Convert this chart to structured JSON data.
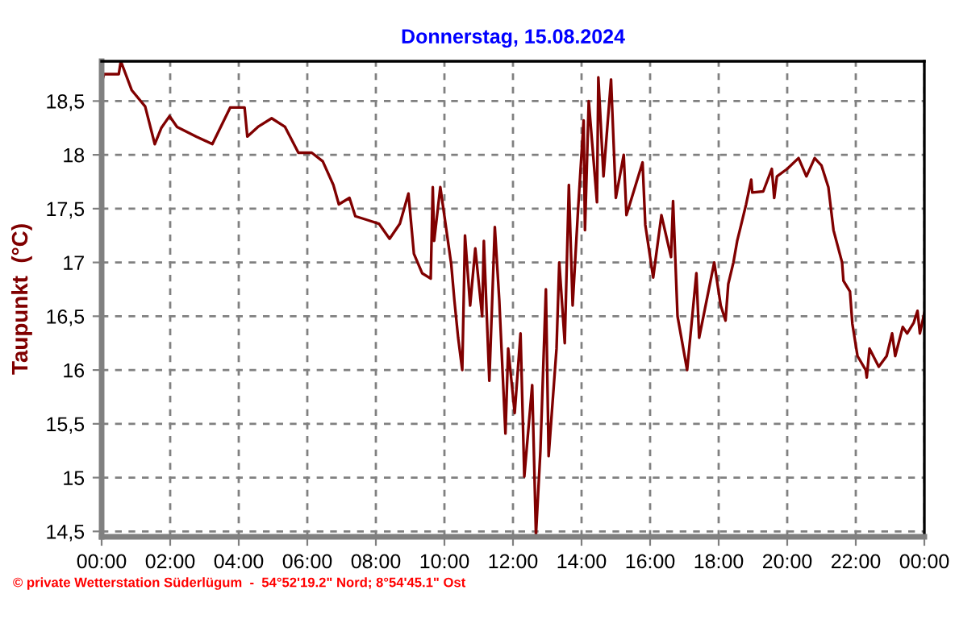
{
  "chart_data": {
    "type": "line",
    "title": "Donnerstag, 15.08.2024",
    "ylabel": "Taupunkt  (°C)",
    "annotations": [
      "© private Wetterstation Süderlügum  -  54°52'19.2\" Nord; 8°54'45.1\" Ost"
    ],
    "xlim": [
      0,
      24
    ],
    "ylim": [
      14.45,
      18.87
    ],
    "xticks": [
      {
        "value": 0,
        "label": "00:00"
      },
      {
        "value": 2,
        "label": "02:00"
      },
      {
        "value": 4,
        "label": "04:00"
      },
      {
        "value": 6,
        "label": "06:00"
      },
      {
        "value": 8,
        "label": "08:00"
      },
      {
        "value": 10,
        "label": "10:00"
      },
      {
        "value": 12,
        "label": "12:00"
      },
      {
        "value": 14,
        "label": "14:00"
      },
      {
        "value": 16,
        "label": "16:00"
      },
      {
        "value": 18,
        "label": "18:00"
      },
      {
        "value": 20,
        "label": "20:00"
      },
      {
        "value": 22,
        "label": "22:00"
      },
      {
        "value": 24,
        "label": "00:00"
      }
    ],
    "yticks": [
      {
        "value": 14.5,
        "label": "14,5"
      },
      {
        "value": 15,
        "label": "15"
      },
      {
        "value": 15.5,
        "label": "15,5"
      },
      {
        "value": 16,
        "label": "16"
      },
      {
        "value": 16.5,
        "label": "16,5"
      },
      {
        "value": 17,
        "label": "17"
      },
      {
        "value": 17.5,
        "label": "17,5"
      },
      {
        "value": 18,
        "label": "18"
      },
      {
        "value": 18.5,
        "label": "18,5"
      }
    ],
    "grid": true,
    "line_style": "solid",
    "series": [
      {
        "color": "#800000",
        "x": [
          0.0,
          0.07,
          0.5,
          0.56,
          0.88,
          1.27,
          1.55,
          1.74,
          1.98,
          2.2,
          2.76,
          3.23,
          3.75,
          4.17,
          4.25,
          4.56,
          4.96,
          5.35,
          5.74,
          6.13,
          6.45,
          6.76,
          6.92,
          7.23,
          7.4,
          7.7,
          8.09,
          8.4,
          8.7,
          8.95,
          9.11,
          9.35,
          9.6,
          9.66,
          9.7,
          9.88,
          10.2,
          10.29,
          10.4,
          10.52,
          10.6,
          10.75,
          10.9,
          11.1,
          11.15,
          11.31,
          11.47,
          11.6,
          11.78,
          11.86,
          12.05,
          12.22,
          12.33,
          12.56,
          12.67,
          12.8,
          12.96,
          13.04,
          13.27,
          13.35,
          13.51,
          13.63,
          13.74,
          13.9,
          14.06,
          14.1,
          14.21,
          14.45,
          14.49,
          14.64,
          14.86,
          15.0,
          15.23,
          15.31,
          15.78,
          15.86,
          16.09,
          16.33,
          16.61,
          16.67,
          16.8,
          17.08,
          17.35,
          17.43,
          17.87,
          18.06,
          18.2,
          18.28,
          18.43,
          18.54,
          18.64,
          18.8,
          18.95,
          18.98,
          19.3,
          19.55,
          19.62,
          19.7,
          20.0,
          20.33,
          20.56,
          20.8,
          21.0,
          21.2,
          21.35,
          21.6,
          21.64,
          21.83,
          21.9,
          22.05,
          22.29,
          22.32,
          22.4,
          22.67,
          22.9,
          23.06,
          23.15,
          23.37,
          23.5,
          23.69,
          23.8,
          23.87,
          24.0
        ],
        "values": [
          18.67,
          18.75,
          18.75,
          18.87,
          18.6,
          18.45,
          18.1,
          18.25,
          18.36,
          18.26,
          18.17,
          18.1,
          18.44,
          18.44,
          18.17,
          18.26,
          18.34,
          18.26,
          18.02,
          18.02,
          17.94,
          17.72,
          17.54,
          17.6,
          17.43,
          17.4,
          17.36,
          17.22,
          17.36,
          17.64,
          17.08,
          16.9,
          16.85,
          17.7,
          17.2,
          17.7,
          16.98,
          16.65,
          16.3,
          16.0,
          17.25,
          16.6,
          17.13,
          16.5,
          17.2,
          15.9,
          17.33,
          16.65,
          15.41,
          16.2,
          15.6,
          16.34,
          15.01,
          15.86,
          14.47,
          15.25,
          16.75,
          15.2,
          16.2,
          17.0,
          16.25,
          17.72,
          16.6,
          17.5,
          18.32,
          17.3,
          18.5,
          17.56,
          18.72,
          17.8,
          18.7,
          17.6,
          18.0,
          17.44,
          17.93,
          17.35,
          16.86,
          17.44,
          17.05,
          17.57,
          16.5,
          16.0,
          16.9,
          16.3,
          17.0,
          16.6,
          16.46,
          16.8,
          17.0,
          17.2,
          17.33,
          17.54,
          17.77,
          17.65,
          17.66,
          17.87,
          17.6,
          17.8,
          17.87,
          17.97,
          17.8,
          17.97,
          17.9,
          17.7,
          17.3,
          17.0,
          16.83,
          16.73,
          16.43,
          16.13,
          16.0,
          15.93,
          16.2,
          16.03,
          16.13,
          16.34,
          16.13,
          16.4,
          16.34,
          16.44,
          16.55,
          16.34,
          16.53
        ]
      }
    ]
  }
}
